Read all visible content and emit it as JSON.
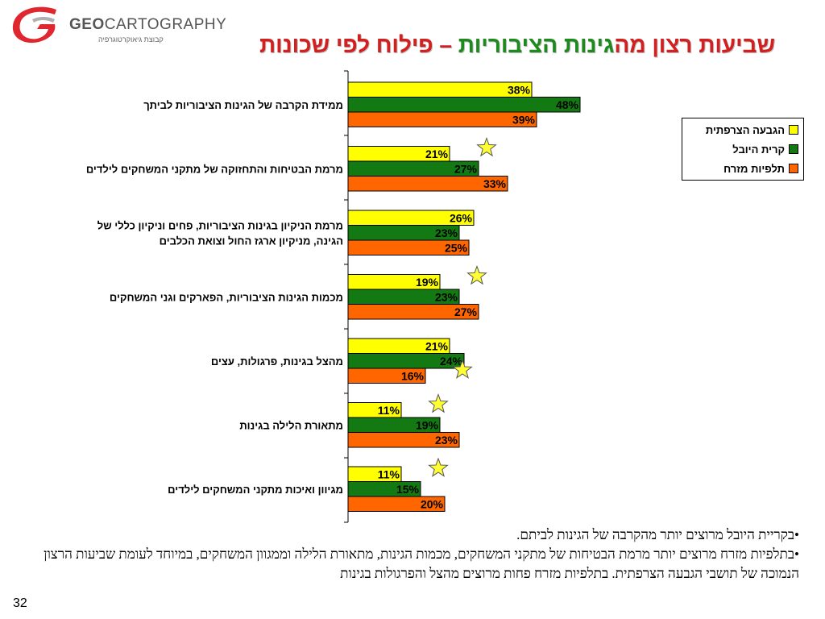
{
  "header": {
    "logo_text_bold": "GEO",
    "logo_text": "CARTOGRAPHY",
    "logo_subtitle": "קבוצת גיאוקרטוגרפיה",
    "title_part1": "שביעות רצון מה",
    "title_part2": "גינות הציבוריות",
    "title_part3": " – פילוח לפי שכונות"
  },
  "colors": {
    "yellow": "#ffff00",
    "green": "#137a13",
    "orange": "#ff6600",
    "title_red": "#d21f1f",
    "title_green": "#1c8a1c",
    "star": "#ffff33"
  },
  "chart_data": {
    "type": "bar",
    "orientation": "horizontal",
    "categories": [
      "ממידת הקרבה של הגינות הציבוריות לביתך",
      "מרמת הבטיחות והתחזוקה של מתקני המשחקים לילדים",
      "מרמת הניקיון בגינות הציבוריות, פחים וניקיון כללי של הגינה, מניקיון ארגז החול וצואת הכלבים",
      "מכמות הגינות הציבוריות, הפארקים וגני המשחקים",
      "מהצל בגינות, פרגולות, עצים",
      "מתאורת הלילה בגינות",
      "מגיוון ואיכות מתקני המשחקים לילדים"
    ],
    "category_lines": [
      [
        "ממידת הקרבה של הגינות הציבוריות לביתך"
      ],
      [
        "מרמת הבטיחות והתחזוקה של מתקני המשחקים לילדים"
      ],
      [
        "מרמת הניקיון בגינות הציבוריות, פחים וניקיון כללי של",
        "הגינה, מניקיון ארגז החול וצואת הכלבים"
      ],
      [
        "מכמות הגינות הציבוריות, הפארקים וגני המשחקים"
      ],
      [
        "מהצל בגינות, פרגולות, עצים"
      ],
      [
        "מתאורת הלילה בגינות"
      ],
      [
        "מגיוון ואיכות מתקני המשחקים לילדים"
      ]
    ],
    "series": [
      {
        "name": "הגבעה הצרפתית",
        "color": "#ffff00",
        "values": [
          38,
          21,
          26,
          19,
          21,
          11,
          11
        ]
      },
      {
        "name": "קרית היובל",
        "color": "#137a13",
        "values": [
          48,
          27,
          23,
          23,
          24,
          19,
          15
        ]
      },
      {
        "name": "תלפיות מזרח",
        "color": "#ff6600",
        "values": [
          39,
          33,
          25,
          27,
          16,
          23,
          20
        ]
      }
    ],
    "value_suffix": "%",
    "xlim": [
      0,
      100
    ],
    "stars": [
      {
        "category_index": 1,
        "series_index": 0
      },
      {
        "category_index": 3,
        "series_index": 0
      },
      {
        "category_index": 4,
        "series_index": 2
      },
      {
        "category_index": 5,
        "series_index": 0
      },
      {
        "category_index": 6,
        "series_index": 0
      }
    ],
    "legend_position": "right",
    "grid": false
  },
  "summary": {
    "line1": "•בקריית היובל מרוצים יותר מהקרבה של הגינות לביתם.",
    "line2": "•בתלפיות מזרח מרוצים יותר מרמת הבטיחות של מתקני המשחקים, מכמות הגינות, מתאורת הלילה וממגוון המשחקים, במיוחד לעומת שביעות הרצון הנמוכה של תושבי הגבעה הצרפתית. בתלפיות מזרח פחות מרוצים מהצל והפרגולות בגינות"
  },
  "page_number": "32"
}
